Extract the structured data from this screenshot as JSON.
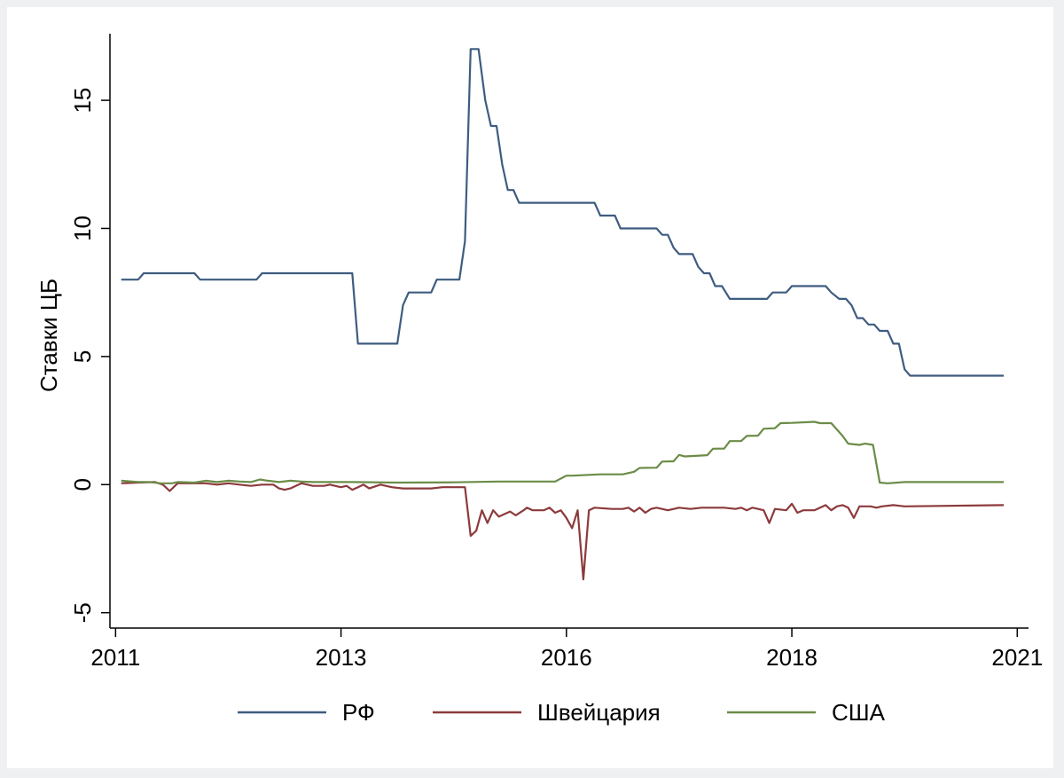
{
  "chart_data": {
    "type": "line",
    "title": "",
    "xlabel": "",
    "ylabel": "Ставки ЦБ",
    "x_ticks": [
      {
        "label": "2011",
        "value": 2011.0
      },
      {
        "label": "2013",
        "value": 2013.0
      },
      {
        "label": "2016",
        "value": 2015.0
      },
      {
        "label": "2018",
        "value": 2017.0
      },
      {
        "label": "2021",
        "value": 2019.0
      }
    ],
    "y_ticks": [
      {
        "label": "-5",
        "value": -5
      },
      {
        "label": "0",
        "value": 0
      },
      {
        "label": "5",
        "value": 5
      },
      {
        "label": "10",
        "value": 10
      },
      {
        "label": "15",
        "value": 15
      }
    ],
    "xlim": [
      2010.95,
      2019.1
    ],
    "ylim": [
      -5.6,
      17.6
    ],
    "legend_position": "bottom",
    "series": [
      {
        "name": "РФ",
        "color": "#3e5c80",
        "points": [
          [
            2011.05,
            8.0
          ],
          [
            2011.2,
            8.0
          ],
          [
            2011.25,
            8.25
          ],
          [
            2011.7,
            8.25
          ],
          [
            2011.75,
            8.0
          ],
          [
            2012.25,
            8.0
          ],
          [
            2012.3,
            8.25
          ],
          [
            2013.1,
            8.25
          ],
          [
            2013.15,
            5.5
          ],
          [
            2013.5,
            5.5
          ],
          [
            2013.55,
            7.0
          ],
          [
            2013.6,
            7.5
          ],
          [
            2013.8,
            7.5
          ],
          [
            2013.85,
            8.0
          ],
          [
            2014.05,
            8.0
          ],
          [
            2014.1,
            9.5
          ],
          [
            2014.15,
            17.0
          ],
          [
            2014.22,
            17.0
          ],
          [
            2014.28,
            15.0
          ],
          [
            2014.33,
            14.0
          ],
          [
            2014.38,
            14.0
          ],
          [
            2014.43,
            12.5
          ],
          [
            2014.48,
            11.5
          ],
          [
            2014.53,
            11.5
          ],
          [
            2014.58,
            11.0
          ],
          [
            2015.25,
            11.0
          ],
          [
            2015.3,
            10.5
          ],
          [
            2015.43,
            10.5
          ],
          [
            2015.48,
            10.0
          ],
          [
            2015.8,
            10.0
          ],
          [
            2015.85,
            9.75
          ],
          [
            2015.9,
            9.75
          ],
          [
            2015.95,
            9.25
          ],
          [
            2016.0,
            9.0
          ],
          [
            2016.12,
            9.0
          ],
          [
            2016.17,
            8.5
          ],
          [
            2016.22,
            8.25
          ],
          [
            2016.27,
            8.25
          ],
          [
            2016.32,
            7.75
          ],
          [
            2016.38,
            7.75
          ],
          [
            2016.45,
            7.25
          ],
          [
            2016.78,
            7.25
          ],
          [
            2016.83,
            7.5
          ],
          [
            2016.95,
            7.5
          ],
          [
            2017.0,
            7.75
          ],
          [
            2017.3,
            7.75
          ],
          [
            2017.35,
            7.5
          ],
          [
            2017.42,
            7.25
          ],
          [
            2017.48,
            7.25
          ],
          [
            2017.53,
            7.0
          ],
          [
            2017.58,
            6.5
          ],
          [
            2017.63,
            6.5
          ],
          [
            2017.68,
            6.25
          ],
          [
            2017.73,
            6.25
          ],
          [
            2017.78,
            6.0
          ],
          [
            2017.85,
            6.0
          ],
          [
            2017.9,
            5.5
          ],
          [
            2017.95,
            5.5
          ],
          [
            2018.0,
            4.5
          ],
          [
            2018.05,
            4.25
          ],
          [
            2018.88,
            4.25
          ]
        ]
      },
      {
        "name": "Швейцария",
        "color": "#8c3a3c",
        "points": [
          [
            2011.05,
            0.05
          ],
          [
            2011.2,
            0.08
          ],
          [
            2011.35,
            0.1
          ],
          [
            2011.42,
            0.0
          ],
          [
            2011.48,
            -0.25
          ],
          [
            2011.55,
            0.05
          ],
          [
            2011.7,
            0.05
          ],
          [
            2011.8,
            0.05
          ],
          [
            2011.9,
            0.0
          ],
          [
            2012.0,
            0.05
          ],
          [
            2012.1,
            0.0
          ],
          [
            2012.2,
            -0.05
          ],
          [
            2012.3,
            0.0
          ],
          [
            2012.4,
            0.0
          ],
          [
            2012.45,
            -0.15
          ],
          [
            2012.5,
            -0.2
          ],
          [
            2012.55,
            -0.15
          ],
          [
            2012.65,
            0.05
          ],
          [
            2012.75,
            -0.05
          ],
          [
            2012.85,
            -0.05
          ],
          [
            2012.9,
            0.0
          ],
          [
            2013.0,
            -0.1
          ],
          [
            2013.05,
            -0.05
          ],
          [
            2013.1,
            -0.2
          ],
          [
            2013.15,
            -0.1
          ],
          [
            2013.2,
            0.0
          ],
          [
            2013.25,
            -0.15
          ],
          [
            2013.35,
            0.0
          ],
          [
            2013.45,
            -0.1
          ],
          [
            2013.55,
            -0.15
          ],
          [
            2013.65,
            -0.15
          ],
          [
            2013.8,
            -0.15
          ],
          [
            2013.9,
            -0.1
          ],
          [
            2014.0,
            -0.1
          ],
          [
            2014.1,
            -0.1
          ],
          [
            2014.15,
            -2.0
          ],
          [
            2014.2,
            -1.8
          ],
          [
            2014.25,
            -1.0
          ],
          [
            2014.3,
            -1.5
          ],
          [
            2014.35,
            -1.0
          ],
          [
            2014.4,
            -1.25
          ],
          [
            2014.5,
            -1.05
          ],
          [
            2014.55,
            -1.2
          ],
          [
            2014.62,
            -1.0
          ],
          [
            2014.65,
            -0.9
          ],
          [
            2014.7,
            -1.0
          ],
          [
            2014.8,
            -1.0
          ],
          [
            2014.85,
            -0.9
          ],
          [
            2014.9,
            -1.1
          ],
          [
            2014.95,
            -1.0
          ],
          [
            2015.0,
            -1.3
          ],
          [
            2015.05,
            -1.7
          ],
          [
            2015.1,
            -1.0
          ],
          [
            2015.15,
            -3.7
          ],
          [
            2015.2,
            -1.0
          ],
          [
            2015.25,
            -0.9
          ],
          [
            2015.4,
            -0.95
          ],
          [
            2015.5,
            -0.95
          ],
          [
            2015.55,
            -0.9
          ],
          [
            2015.6,
            -1.05
          ],
          [
            2015.65,
            -0.9
          ],
          [
            2015.7,
            -1.1
          ],
          [
            2015.75,
            -0.95
          ],
          [
            2015.8,
            -0.9
          ],
          [
            2015.9,
            -1.0
          ],
          [
            2016.0,
            -0.9
          ],
          [
            2016.1,
            -0.95
          ],
          [
            2016.2,
            -0.9
          ],
          [
            2016.4,
            -0.9
          ],
          [
            2016.5,
            -0.95
          ],
          [
            2016.55,
            -0.9
          ],
          [
            2016.6,
            -1.0
          ],
          [
            2016.65,
            -0.9
          ],
          [
            2016.7,
            -0.95
          ],
          [
            2016.75,
            -1.0
          ],
          [
            2016.8,
            -1.5
          ],
          [
            2016.85,
            -0.95
          ],
          [
            2016.95,
            -1.0
          ],
          [
            2017.0,
            -0.75
          ],
          [
            2017.05,
            -1.1
          ],
          [
            2017.1,
            -1.0
          ],
          [
            2017.2,
            -1.0
          ],
          [
            2017.3,
            -0.8
          ],
          [
            2017.35,
            -1.0
          ],
          [
            2017.4,
            -0.85
          ],
          [
            2017.45,
            -0.8
          ],
          [
            2017.5,
            -0.9
          ],
          [
            2017.55,
            -1.3
          ],
          [
            2017.6,
            -0.85
          ],
          [
            2017.7,
            -0.85
          ],
          [
            2017.75,
            -0.9
          ],
          [
            2017.8,
            -0.85
          ],
          [
            2017.9,
            -0.8
          ],
          [
            2018.0,
            -0.85
          ],
          [
            2018.88,
            -0.8
          ]
        ]
      },
      {
        "name": "США",
        "color": "#6b8c47",
        "points": [
          [
            2011.05,
            0.15
          ],
          [
            2011.2,
            0.1
          ],
          [
            2011.3,
            0.1
          ],
          [
            2011.4,
            0.05
          ],
          [
            2011.5,
            0.05
          ],
          [
            2011.55,
            0.1
          ],
          [
            2011.7,
            0.08
          ],
          [
            2011.8,
            0.15
          ],
          [
            2011.9,
            0.1
          ],
          [
            2012.0,
            0.15
          ],
          [
            2012.1,
            0.12
          ],
          [
            2012.2,
            0.1
          ],
          [
            2012.28,
            0.2
          ],
          [
            2012.35,
            0.15
          ],
          [
            2012.45,
            0.1
          ],
          [
            2012.55,
            0.15
          ],
          [
            2012.65,
            0.12
          ],
          [
            2012.75,
            0.1
          ],
          [
            2013.0,
            0.1
          ],
          [
            2013.1,
            0.1
          ],
          [
            2013.5,
            0.08
          ],
          [
            2014.0,
            0.09
          ],
          [
            2014.4,
            0.12
          ],
          [
            2014.9,
            0.12
          ],
          [
            2015.0,
            0.35
          ],
          [
            2015.05,
            0.35
          ],
          [
            2015.3,
            0.4
          ],
          [
            2015.5,
            0.4
          ],
          [
            2015.6,
            0.5
          ],
          [
            2015.65,
            0.65
          ],
          [
            2015.8,
            0.66
          ],
          [
            2015.85,
            0.9
          ],
          [
            2015.95,
            0.91
          ],
          [
            2016.0,
            1.16
          ],
          [
            2016.05,
            1.1
          ],
          [
            2016.25,
            1.15
          ],
          [
            2016.3,
            1.4
          ],
          [
            2016.4,
            1.41
          ],
          [
            2016.45,
            1.7
          ],
          [
            2016.55,
            1.7
          ],
          [
            2016.6,
            1.9
          ],
          [
            2016.7,
            1.91
          ],
          [
            2016.75,
            2.18
          ],
          [
            2016.85,
            2.2
          ],
          [
            2016.9,
            2.4
          ],
          [
            2017.0,
            2.41
          ],
          [
            2017.2,
            2.45
          ],
          [
            2017.25,
            2.4
          ],
          [
            2017.35,
            2.4
          ],
          [
            2017.45,
            1.9
          ],
          [
            2017.5,
            1.6
          ],
          [
            2017.6,
            1.55
          ],
          [
            2017.65,
            1.6
          ],
          [
            2017.72,
            1.55
          ],
          [
            2017.78,
            0.08
          ],
          [
            2017.85,
            0.05
          ],
          [
            2018.0,
            0.1
          ],
          [
            2018.88,
            0.1
          ]
        ]
      }
    ]
  }
}
